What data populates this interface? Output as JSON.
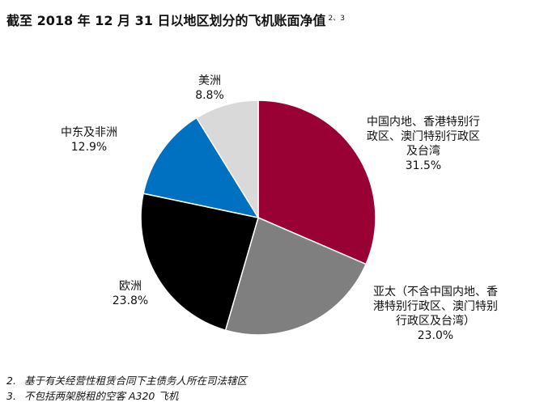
{
  "title": "截至 2018 年 12 月 31 日以地区划分的飞机账面净值",
  "title_refs": "2、3",
  "chart_data": {
    "type": "pie",
    "title": "截至 2018 年 12 月 31 日以地区划分的飞机账面净值",
    "unit": "%",
    "slices": [
      {
        "label": [
          "中国内地、香港特别行",
          "政区、澳门特别行政区",
          "及台湾"
        ],
        "value": 31.5,
        "value_text": "31.5%",
        "color": "#990033"
      },
      {
        "label": [
          "亚太（不含中国内地、香",
          "港特别行政区、澳门特别",
          "行政区及台湾）"
        ],
        "value": 23.0,
        "value_text": "23.0%",
        "color": "#7f7f7f"
      },
      {
        "label": [
          "欧洲"
        ],
        "value": 23.8,
        "value_text": "23.8%",
        "color": "#000000"
      },
      {
        "label": [
          "中东及非洲"
        ],
        "value": 12.9,
        "value_text": "12.9%",
        "color": "#0070c0"
      },
      {
        "label": [
          "美洲"
        ],
        "value": 8.8,
        "value_text": "8.8%",
        "color": "#d9d9d9"
      }
    ]
  },
  "footnotes": [
    {
      "num": "2.",
      "text": "基于有关经营性租赁合同下主债务人所在司法辖区"
    },
    {
      "num": "3.",
      "text": "不包括两架脱租的空客 A320 飞机"
    }
  ]
}
